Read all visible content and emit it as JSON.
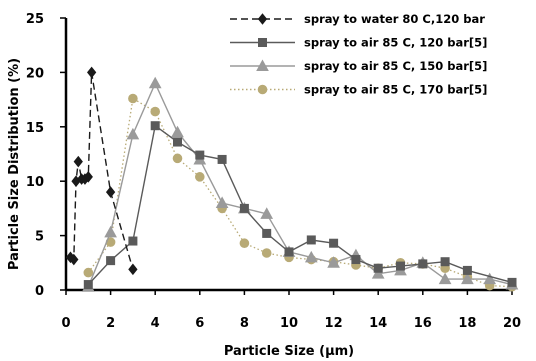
{
  "chart_data": {
    "type": "line",
    "title": "",
    "xlabel": "Particle Size (µm)",
    "ylabel": "Particle Size Distribution (%)",
    "xlim": [
      0,
      20
    ],
    "ylim": [
      0,
      25
    ],
    "xticks": [
      0,
      2,
      4,
      6,
      8,
      10,
      12,
      14,
      16,
      18,
      20
    ],
    "yticks": [
      0,
      5,
      10,
      15,
      20,
      25
    ],
    "grid": false,
    "legend_position": "top-right",
    "series": [
      {
        "name": "spray to water 80 C,120 bar",
        "color": "#1a1a1a",
        "marker": "diamond",
        "line_style": "dashed",
        "points": [
          [
            0.2,
            3
          ],
          [
            0.35,
            2.8
          ],
          [
            0.45,
            10
          ],
          [
            0.55,
            11.8
          ],
          [
            0.7,
            10.2
          ],
          [
            0.85,
            10.2
          ],
          [
            1.0,
            10.4
          ],
          [
            1.15,
            20
          ],
          [
            2.0,
            9
          ],
          [
            3.0,
            1.9
          ]
        ]
      },
      {
        "name": "spray to air 85 C, 120 bar[5]",
        "color": "#5a5a5a",
        "marker": "square",
        "line_style": "solid",
        "points": [
          [
            1.0,
            0.5
          ],
          [
            2.0,
            2.7
          ],
          [
            3.0,
            4.5
          ],
          [
            4.0,
            15.1
          ],
          [
            5.0,
            13.6
          ],
          [
            6.0,
            12.4
          ],
          [
            7.0,
            12.0
          ],
          [
            8.0,
            7.5
          ],
          [
            9.0,
            5.2
          ],
          [
            10.0,
            3.5
          ],
          [
            11.0,
            4.6
          ],
          [
            12.0,
            4.3
          ],
          [
            13.0,
            2.8
          ],
          [
            14.0,
            2.0
          ],
          [
            15.0,
            2.2
          ],
          [
            16.0,
            2.4
          ],
          [
            17.0,
            2.6
          ],
          [
            18.0,
            1.8
          ],
          [
            20.0,
            0.7
          ]
        ]
      },
      {
        "name": "spray to air 85 C, 150 bar[5]",
        "color": "#9a9a9a",
        "marker": "triangle",
        "line_style": "solid",
        "points": [
          [
            1.0,
            0.3
          ],
          [
            2.0,
            5.3
          ],
          [
            3.0,
            14.3
          ],
          [
            4.0,
            19.0
          ],
          [
            5.0,
            14.5
          ],
          [
            6.0,
            12.0
          ],
          [
            7.0,
            8.0
          ],
          [
            8.0,
            7.5
          ],
          [
            9.0,
            7.0
          ],
          [
            10.0,
            3.5
          ],
          [
            11.0,
            3.0
          ],
          [
            12.0,
            2.5
          ],
          [
            13.0,
            3.2
          ],
          [
            14.0,
            1.5
          ],
          [
            15.0,
            1.8
          ],
          [
            16.0,
            2.5
          ],
          [
            17.0,
            1.0
          ],
          [
            18.0,
            1.0
          ],
          [
            19.0,
            1.0
          ],
          [
            20.0,
            0.5
          ]
        ]
      },
      {
        "name": "spray to air 85 C, 170 bar[5]",
        "color": "#b8aa76",
        "marker": "circle",
        "line_style": "dotted",
        "points": [
          [
            1.0,
            1.6
          ],
          [
            2.0,
            4.4
          ],
          [
            3.0,
            17.6
          ],
          [
            4.0,
            16.4
          ],
          [
            5.0,
            12.1
          ],
          [
            6.0,
            10.4
          ],
          [
            7.0,
            7.5
          ],
          [
            8.0,
            4.3
          ],
          [
            9.0,
            3.4
          ],
          [
            10.0,
            3.0
          ],
          [
            11.0,
            2.8
          ],
          [
            12.0,
            2.6
          ],
          [
            13.0,
            2.3
          ],
          [
            14.0,
            2.0
          ],
          [
            15.0,
            2.5
          ],
          [
            16.0,
            2.4
          ],
          [
            17.0,
            2.0
          ],
          [
            18.0,
            1.2
          ],
          [
            19.0,
            0.4
          ],
          [
            20.0,
            0.3
          ]
        ]
      }
    ]
  }
}
